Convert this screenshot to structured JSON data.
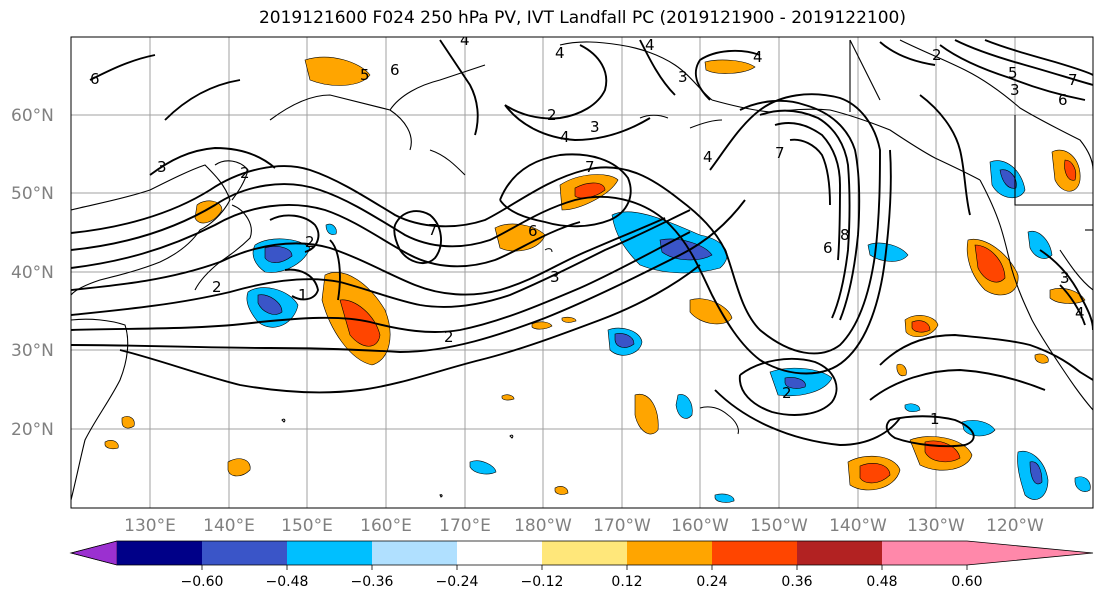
{
  "title": "2019121600 F024 250 hPa PV, IVT Landfall PC (2019121900 - 2019122100)",
  "lat_labels": [
    "60°N",
    "50°N",
    "40°N",
    "30°N",
    "20°N"
  ],
  "lon_labels": [
    "130°E",
    "140°E",
    "150°E",
    "160°E",
    "170°E",
    "180°W",
    "170°W",
    "160°W",
    "150°W",
    "140°W",
    "130°W",
    "120°W"
  ],
  "colorbar": {
    "colors": [
      "#9b30d0",
      "#000088",
      "#3a55c8",
      "#00bfff",
      "#b0e0ff",
      "#ffffff",
      "#ffe77a",
      "#ffa500",
      "#ff4500",
      "#b22222",
      "#ff88aa"
    ],
    "tick_labels": [
      "−0.60",
      "−0.48",
      "−0.36",
      "−0.24",
      "−0.12",
      "0.12",
      "0.24",
      "0.36",
      "0.48",
      "0.60"
    ]
  },
  "contour_labels": [
    "6",
    "5",
    "6",
    "4",
    "4",
    "4",
    "2",
    "2",
    "3",
    "4",
    "7",
    "7",
    "6",
    "7",
    "4",
    "3",
    "2",
    "3",
    "2",
    "1",
    "2",
    "2",
    "8",
    "6",
    "3",
    "4",
    "1",
    "6",
    "7",
    "5",
    "3",
    "4",
    "3",
    "2"
  ]
}
